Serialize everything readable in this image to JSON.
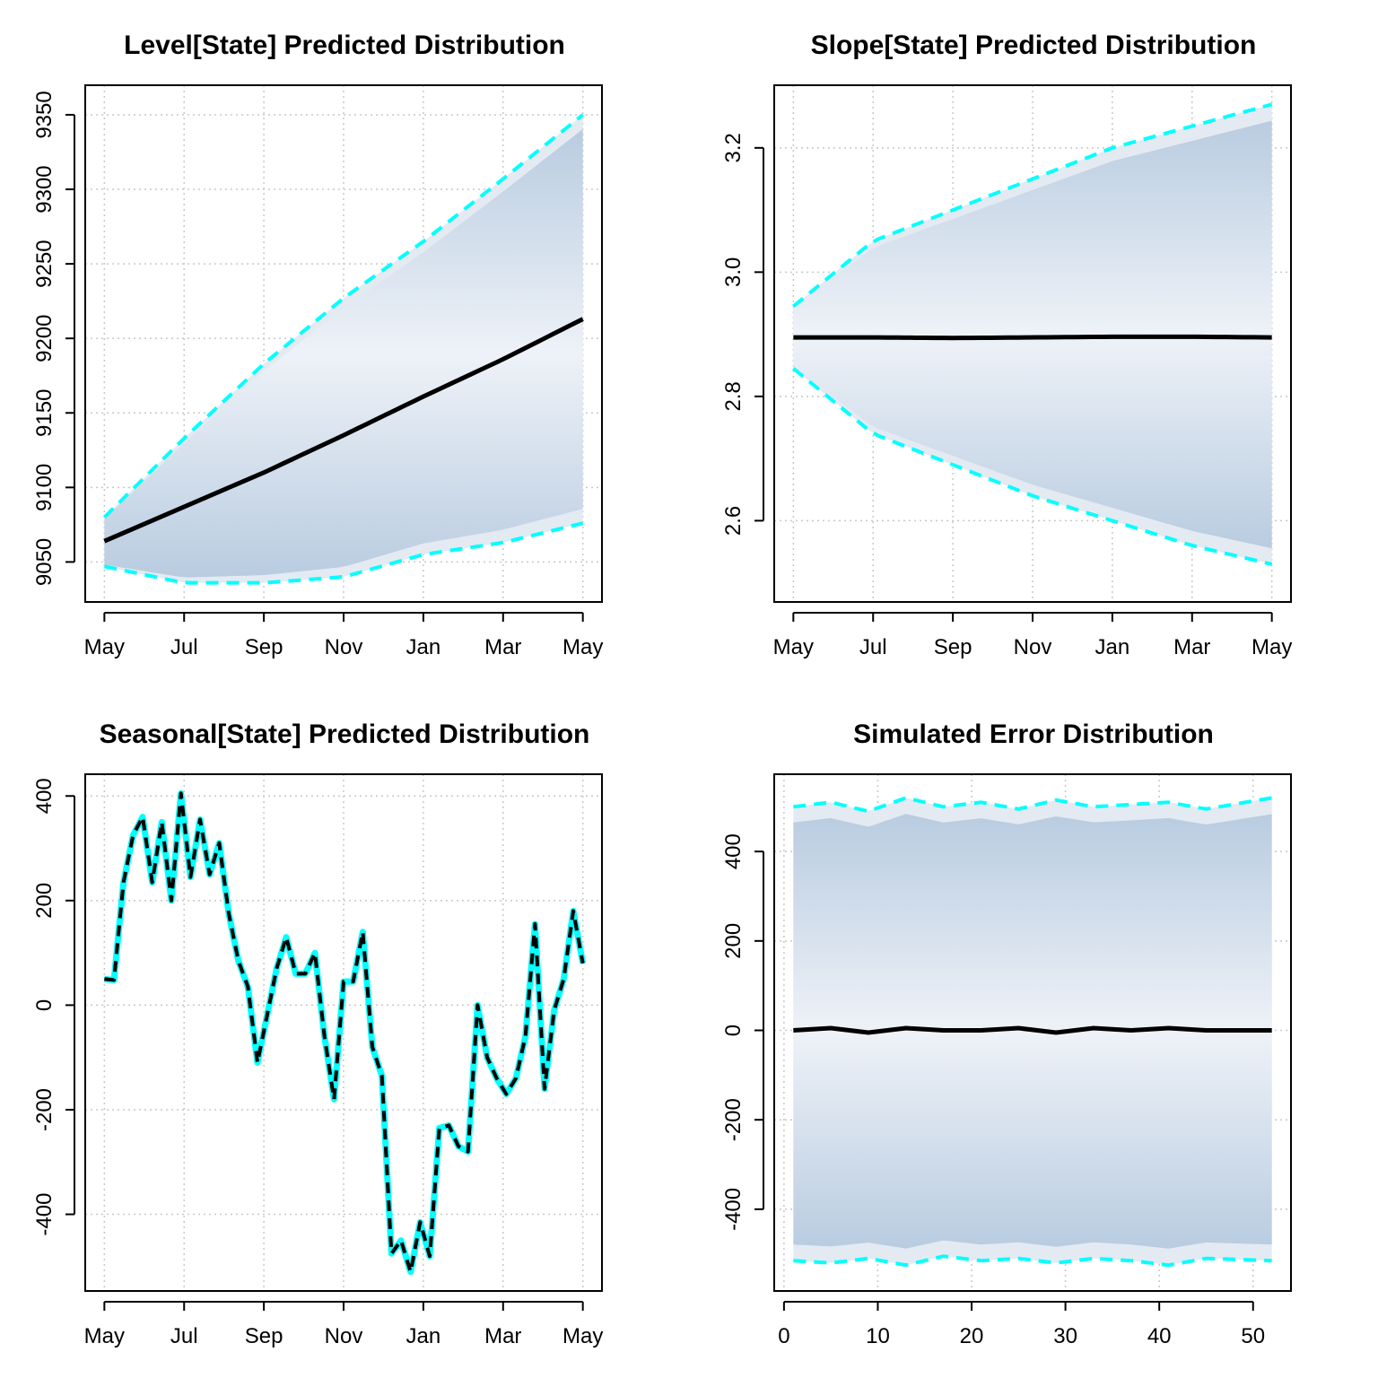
{
  "chart_data": [
    {
      "type": "area",
      "title": "Level[State] Predicted Distribution",
      "xlabel": "",
      "ylabel": "",
      "x_tick_labels": [
        "May",
        "Jul",
        "Sep",
        "Nov",
        "Jan",
        "Mar",
        "May"
      ],
      "y_ticks": [
        9050,
        9100,
        9150,
        9200,
        9250,
        9300,
        9350
      ],
      "xlim": [
        1,
        52
      ],
      "ylim": [
        9036,
        9357
      ],
      "grid": true,
      "series": [
        {
          "role": "median",
          "color": "#000000",
          "values": [
            9064,
            9087,
            9110,
            9135,
            9161,
            9186,
            9213
          ],
          "x": [
            1,
            9.5,
            18,
            26.5,
            35,
            43.5,
            52
          ]
        },
        {
          "role": "upper_95",
          "color": "#00FFFF",
          "dashed": true,
          "values": [
            9080,
            9133,
            9183,
            9227,
            9265,
            9307,
            9350
          ],
          "x": [
            1,
            9.5,
            18,
            26.5,
            35,
            43.5,
            52
          ]
        },
        {
          "role": "lower_95",
          "color": "#00FFFF",
          "dashed": true,
          "values": [
            9047,
            9036,
            9036,
            9040,
            9055,
            9063,
            9076
          ],
          "x": [
            1,
            9.5,
            18,
            26.5,
            35,
            43.5,
            52
          ]
        }
      ]
    },
    {
      "type": "area",
      "title": "Slope[State] Predicted Distribution",
      "xlabel": "",
      "ylabel": "",
      "x_tick_labels": [
        "May",
        "Jul",
        "Sep",
        "Nov",
        "Jan",
        "Mar",
        "May"
      ],
      "y_ticks": [
        2.6,
        2.8,
        3.0,
        3.2
      ],
      "xlim": [
        1,
        52
      ],
      "ylim": [
        2.5,
        3.27
      ],
      "grid": true,
      "series": [
        {
          "role": "median",
          "color": "#000000",
          "values": [
            2.895,
            2.895,
            2.894,
            2.895,
            2.896,
            2.896,
            2.895
          ],
          "x": [
            1,
            9.5,
            18,
            26.5,
            35,
            43.5,
            52
          ]
        },
        {
          "role": "upper_95",
          "color": "#00FFFF",
          "dashed": true,
          "values": [
            2.945,
            3.05,
            3.1,
            3.15,
            3.2,
            3.235,
            3.27
          ],
          "x": [
            1,
            9.5,
            18,
            26.5,
            35,
            43.5,
            52
          ]
        },
        {
          "role": "lower_95",
          "color": "#00FFFF",
          "dashed": true,
          "values": [
            2.845,
            2.74,
            2.69,
            2.64,
            2.6,
            2.56,
            2.53
          ],
          "x": [
            1,
            9.5,
            18,
            26.5,
            35,
            43.5,
            52
          ]
        }
      ]
    },
    {
      "type": "line",
      "title": "Seasonal[State] Predicted Distribution",
      "xlabel": "",
      "ylabel": "",
      "x_tick_labels": [
        "May",
        "Jul",
        "Sep",
        "Nov",
        "Jan",
        "Mar",
        "May"
      ],
      "y_ticks": [
        -400,
        -200,
        0,
        200,
        400
      ],
      "xlim": [
        1,
        52
      ],
      "ylim": [
        -510,
        405
      ],
      "grid": true,
      "values": [
        50,
        48,
        235,
        325,
        360,
        235,
        350,
        200,
        405,
        245,
        355,
        250,
        310,
        175,
        85,
        35,
        -110,
        -20,
        70,
        130,
        60,
        60,
        100,
        -60,
        -180,
        45,
        45,
        140,
        -80,
        -135,
        -475,
        -450,
        -510,
        -415,
        -480,
        -235,
        -230,
        -270,
        -280,
        0,
        -100,
        -140,
        -170,
        -140,
        -60,
        155,
        -160,
        -10,
        50,
        180,
        80
      ]
    },
    {
      "type": "area",
      "title": "Simulated Error Distribution",
      "xlabel": "",
      "ylabel": "",
      "x_ticks": [
        0,
        10,
        20,
        30,
        40,
        50
      ],
      "y_ticks": [
        -400,
        -200,
        0,
        200,
        400
      ],
      "xlim": [
        1,
        52
      ],
      "ylim": [
        -540,
        530
      ],
      "grid": true,
      "series": [
        {
          "role": "median",
          "color": "#000000",
          "values": [
            0,
            5,
            -5,
            5,
            0,
            0,
            5,
            -5,
            5,
            0,
            5,
            0,
            0
          ],
          "x": [
            1,
            5,
            9,
            13,
            17,
            21,
            25,
            29,
            33,
            37,
            41,
            45,
            52
          ]
        },
        {
          "role": "upper_95",
          "color": "#00FFFF",
          "dashed": true,
          "values": [
            500,
            510,
            490,
            520,
            500,
            510,
            495,
            515,
            500,
            505,
            510,
            495,
            520
          ],
          "x": [
            1,
            5,
            9,
            13,
            17,
            21,
            25,
            29,
            33,
            37,
            41,
            45,
            52
          ]
        },
        {
          "role": "lower_95",
          "color": "#00FFFF",
          "dashed": true,
          "values": [
            -515,
            -520,
            -510,
            -525,
            -505,
            -515,
            -510,
            -520,
            -510,
            -515,
            -525,
            -510,
            -515
          ],
          "x": [
            1,
            5,
            9,
            13,
            17,
            21,
            25,
            29,
            33,
            37,
            41,
            45,
            52
          ]
        }
      ]
    }
  ]
}
